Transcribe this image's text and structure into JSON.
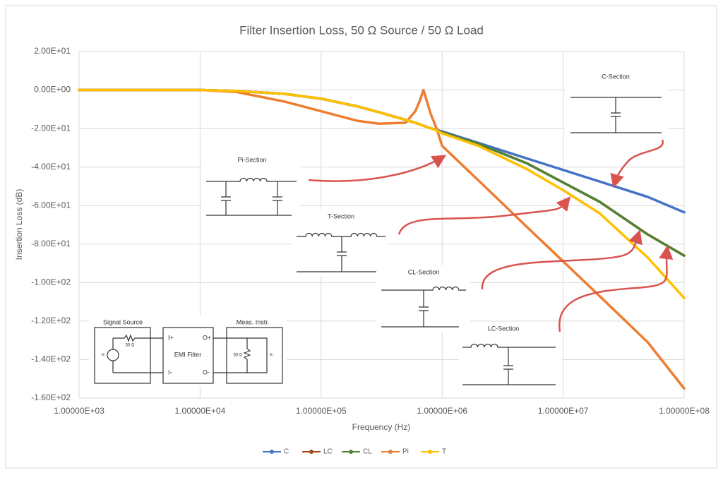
{
  "chart_data": {
    "type": "line",
    "title": "Filter Insertion  Loss, 50 Ω Source / 50 Ω Load",
    "x_label": "Frequency (Hz)",
    "y_label": "Insertion Loss (dB)",
    "xscale": "log",
    "grid": true,
    "legend": "bottom",
    "x": [
      1000,
      2000,
      5000,
      10000,
      20000,
      50000,
      100000,
      200000,
      300000,
      500000,
      600000,
      650000,
      700000,
      750000,
      800000,
      900000,
      1000000,
      2000000,
      5000000,
      10000000,
      20000000,
      50000000,
      100000000
    ],
    "series": [
      {
        "name": "C",
        "color": "#4472c4",
        "values": [
          0,
          0,
          0,
          0,
          -0.5,
          -2,
          -4.5,
          -8.5,
          -11.5,
          -15.5,
          -17,
          -17.8,
          -18.5,
          -19.2,
          -19.8,
          -20.7,
          -21.5,
          -27.5,
          -35.5,
          -41.5,
          -47.5,
          -55.5,
          -63.5
        ]
      },
      {
        "name": "LC",
        "color": "#a0481a",
        "values": [
          0,
          0,
          0,
          0,
          -0.5,
          -2,
          -4.5,
          -8.5,
          -11.5,
          -15.5,
          -17,
          -17.8,
          -18.5,
          -19.2,
          -19.8,
          -20.8,
          -22,
          -28,
          -38,
          -48,
          -58,
          -75,
          -86
        ]
      },
      {
        "name": "CL",
        "color": "#548235",
        "values": [
          0,
          0,
          0,
          0,
          -0.5,
          -2,
          -4.5,
          -8.5,
          -11.5,
          -15.5,
          -17,
          -17.8,
          -18.5,
          -19.2,
          -19.8,
          -20.8,
          -22,
          -28,
          -38,
          -48,
          -58,
          -75,
          -86
        ]
      },
      {
        "name": "Pi",
        "color": "#ed7d31",
        "values": [
          0,
          0,
          0,
          0,
          -1,
          -6,
          -11,
          -16,
          -17.5,
          -17,
          -11,
          -6,
          0,
          -6,
          -12,
          -20,
          -29,
          -47,
          -71,
          -89,
          -107,
          -131,
          -155
        ]
      },
      {
        "name": "T",
        "color": "#ffc000",
        "values": [
          0,
          0,
          0,
          0,
          -0.5,
          -2,
          -4.5,
          -8.5,
          -11.5,
          -15.5,
          -17,
          -17.8,
          -18.5,
          -19.2,
          -19.8,
          -21,
          -22.5,
          -29,
          -41,
          -52,
          -64,
          -87,
          -108
        ]
      }
    ],
    "xlim": [
      1000,
      100000000
    ],
    "xticks": [
      {
        "value": 1000,
        "label": "1.00000E+03"
      },
      {
        "value": 10000,
        "label": "1.00000E+04"
      },
      {
        "value": 100000,
        "label": "1.00000E+05"
      },
      {
        "value": 1000000,
        "label": "1.00000E+06"
      },
      {
        "value": 10000000,
        "label": "1.00000E+07"
      },
      {
        "value": 100000000,
        "label": "1.00000E+08"
      }
    ],
    "ylim": [
      -160,
      20
    ],
    "yticks": [
      {
        "value": 20,
        "label": "2.00E+01"
      },
      {
        "value": 0,
        "label": "0.00E+00"
      },
      {
        "value": -20,
        "label": "-2.00E+01"
      },
      {
        "value": -40,
        "label": "-4.00E+01"
      },
      {
        "value": -60,
        "label": "-6.00E+01"
      },
      {
        "value": -80,
        "label": "-8.00E+01"
      },
      {
        "value": -100,
        "label": "-1.00E+02"
      },
      {
        "value": -120,
        "label": "-1.20E+02"
      },
      {
        "value": -140,
        "label": "-1.40E+02"
      },
      {
        "value": -160,
        "label": "-1.60E+02"
      }
    ],
    "annotations": [
      "C-Section",
      "Pi-Section",
      "T-Section",
      "CL-Section",
      "LC-Section"
    ],
    "inset": {
      "source": "Signal Source",
      "instrument": "Meas. Instr.",
      "filter": "EMI Filter",
      "ports": [
        "I+",
        "O+",
        "I-",
        "O-"
      ],
      "resistor": "50 Ω",
      "voltage": "Vᵢ"
    }
  }
}
